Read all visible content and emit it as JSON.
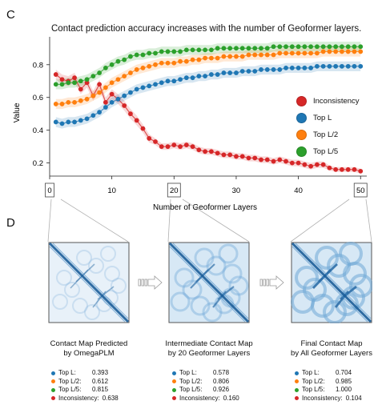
{
  "panel_c_letter": "C",
  "panel_d_letter": "D",
  "chart_data": {
    "type": "line",
    "title": "Contact prediction accuracy increases with the number of Geoformer layers.",
    "xlabel": "Number of Geoformer Layers",
    "ylabel": "Value",
    "xlim": [
      0,
      51
    ],
    "ylim": [
      0.12,
      0.97
    ],
    "xticks": [
      0,
      10,
      20,
      30,
      40,
      50
    ],
    "yticks": [
      0.2,
      0.4,
      0.6,
      0.8
    ],
    "highlighted_xticks": [
      0,
      20,
      50
    ],
    "legend_position": "right",
    "grid": false,
    "x": [
      1,
      2,
      3,
      4,
      5,
      6,
      7,
      8,
      9,
      10,
      11,
      12,
      13,
      14,
      15,
      16,
      17,
      18,
      19,
      20,
      21,
      22,
      23,
      24,
      25,
      26,
      27,
      28,
      29,
      30,
      31,
      32,
      33,
      34,
      35,
      36,
      37,
      38,
      39,
      40,
      41,
      42,
      43,
      44,
      45,
      46,
      47,
      48,
      49,
      50
    ],
    "series": [
      {
        "name": "Inconsistency",
        "color": "#d62728",
        "values": [
          0.74,
          0.71,
          0.7,
          0.72,
          0.65,
          0.69,
          0.61,
          0.68,
          0.57,
          0.62,
          0.59,
          0.55,
          0.5,
          0.46,
          0.41,
          0.35,
          0.33,
          0.3,
          0.3,
          0.31,
          0.3,
          0.31,
          0.3,
          0.28,
          0.27,
          0.27,
          0.26,
          0.25,
          0.25,
          0.24,
          0.24,
          0.23,
          0.23,
          0.22,
          0.22,
          0.21,
          0.22,
          0.21,
          0.2,
          0.2,
          0.19,
          0.18,
          0.19,
          0.19,
          0.17,
          0.16,
          0.16,
          0.16,
          0.16,
          0.15
        ],
        "band": [
          0.03,
          0.03,
          0.03,
          0.03,
          0.03,
          0.03,
          0.03,
          0.03,
          0.03,
          0.03,
          0.03,
          0.03,
          0.03,
          0.03,
          0.025,
          0.025,
          0.02,
          0.02,
          0.02,
          0.02,
          0.02,
          0.02,
          0.02,
          0.02,
          0.02,
          0.02,
          0.02,
          0.02,
          0.02,
          0.02,
          0.02,
          0.02,
          0.02,
          0.02,
          0.02,
          0.02,
          0.02,
          0.02,
          0.02,
          0.02,
          0.02,
          0.02,
          0.02,
          0.02,
          0.015,
          0.015,
          0.015,
          0.015,
          0.015,
          0.015
        ]
      },
      {
        "name": "Top L",
        "color": "#1f77b4",
        "values": [
          0.45,
          0.44,
          0.45,
          0.45,
          0.46,
          0.47,
          0.49,
          0.51,
          0.54,
          0.57,
          0.59,
          0.61,
          0.63,
          0.65,
          0.66,
          0.67,
          0.68,
          0.69,
          0.7,
          0.7,
          0.71,
          0.72,
          0.72,
          0.73,
          0.73,
          0.74,
          0.74,
          0.75,
          0.75,
          0.75,
          0.76,
          0.76,
          0.76,
          0.77,
          0.77,
          0.77,
          0.77,
          0.78,
          0.78,
          0.78,
          0.78,
          0.78,
          0.79,
          0.79,
          0.79,
          0.79,
          0.79,
          0.79,
          0.79,
          0.79
        ],
        "band": [
          0.03,
          0.03,
          0.03,
          0.03,
          0.03,
          0.03,
          0.03,
          0.03,
          0.03,
          0.03,
          0.03,
          0.03,
          0.03,
          0.03,
          0.03,
          0.03,
          0.03,
          0.03,
          0.03,
          0.03,
          0.03,
          0.03,
          0.03,
          0.03,
          0.03,
          0.03,
          0.03,
          0.03,
          0.03,
          0.03,
          0.03,
          0.03,
          0.03,
          0.03,
          0.03,
          0.03,
          0.03,
          0.03,
          0.03,
          0.03,
          0.03,
          0.03,
          0.03,
          0.03,
          0.03,
          0.03,
          0.03,
          0.03,
          0.03,
          0.03
        ]
      },
      {
        "name": "Top L/2",
        "color": "#ff7f0e",
        "values": [
          0.56,
          0.56,
          0.57,
          0.57,
          0.58,
          0.59,
          0.61,
          0.63,
          0.66,
          0.69,
          0.71,
          0.73,
          0.75,
          0.77,
          0.78,
          0.79,
          0.8,
          0.81,
          0.81,
          0.81,
          0.82,
          0.82,
          0.83,
          0.83,
          0.84,
          0.84,
          0.84,
          0.85,
          0.85,
          0.85,
          0.85,
          0.86,
          0.86,
          0.86,
          0.86,
          0.86,
          0.87,
          0.87,
          0.87,
          0.87,
          0.87,
          0.87,
          0.87,
          0.88,
          0.88,
          0.88,
          0.88,
          0.88,
          0.88,
          0.88
        ],
        "band": [
          0.03,
          0.03,
          0.03,
          0.03,
          0.03,
          0.03,
          0.03,
          0.03,
          0.03,
          0.03,
          0.03,
          0.03,
          0.03,
          0.03,
          0.03,
          0.03,
          0.03,
          0.03,
          0.03,
          0.03,
          0.03,
          0.03,
          0.03,
          0.03,
          0.03,
          0.03,
          0.03,
          0.03,
          0.03,
          0.03,
          0.03,
          0.03,
          0.03,
          0.03,
          0.03,
          0.03,
          0.03,
          0.03,
          0.03,
          0.03,
          0.03,
          0.03,
          0.03,
          0.03,
          0.03,
          0.03,
          0.03,
          0.03,
          0.03,
          0.03
        ]
      },
      {
        "name": "Top L/5",
        "color": "#2ca02c",
        "values": [
          0.68,
          0.68,
          0.69,
          0.69,
          0.7,
          0.71,
          0.73,
          0.75,
          0.78,
          0.8,
          0.82,
          0.83,
          0.85,
          0.86,
          0.86,
          0.87,
          0.87,
          0.88,
          0.88,
          0.88,
          0.88,
          0.89,
          0.89,
          0.89,
          0.89,
          0.89,
          0.9,
          0.9,
          0.9,
          0.9,
          0.9,
          0.9,
          0.9,
          0.9,
          0.9,
          0.91,
          0.91,
          0.91,
          0.91,
          0.91,
          0.91,
          0.91,
          0.91,
          0.91,
          0.91,
          0.91,
          0.91,
          0.91,
          0.91,
          0.91
        ],
        "band": [
          0.03,
          0.03,
          0.03,
          0.03,
          0.03,
          0.03,
          0.03,
          0.03,
          0.03,
          0.03,
          0.03,
          0.03,
          0.03,
          0.03,
          0.03,
          0.03,
          0.03,
          0.03,
          0.03,
          0.03,
          0.03,
          0.03,
          0.03,
          0.03,
          0.03,
          0.03,
          0.03,
          0.03,
          0.03,
          0.03,
          0.03,
          0.03,
          0.03,
          0.03,
          0.03,
          0.03,
          0.03,
          0.03,
          0.03,
          0.03,
          0.03,
          0.03,
          0.03,
          0.03,
          0.03,
          0.03,
          0.03,
          0.03,
          0.03,
          0.03
        ]
      }
    ]
  },
  "contact_maps": [
    {
      "caption_line1": "Contact Map Predicted",
      "caption_line2": "by OmegaPLM",
      "stats": [
        {
          "label": "Top L:",
          "value": "0.393",
          "color": "#1f77b4"
        },
        {
          "label": "Top L/2:",
          "value": "0.612",
          "color": "#ff7f0e"
        },
        {
          "label": "Top L/5:",
          "value": "0.815",
          "color": "#2ca02c"
        },
        {
          "label": "Inconsistency:",
          "value": "0.638",
          "color": "#d62728"
        }
      ]
    },
    {
      "caption_line1": "Intermediate Contact Map",
      "caption_line2": "by 20 Geoformer Layers",
      "stats": [
        {
          "label": "Top L:",
          "value": "0.578",
          "color": "#1f77b4"
        },
        {
          "label": "Top L/2:",
          "value": "0.806",
          "color": "#ff7f0e"
        },
        {
          "label": "Top L/5:",
          "value": "0.926",
          "color": "#2ca02c"
        },
        {
          "label": "Inconsistency:",
          "value": "0.160",
          "color": "#d62728"
        }
      ]
    },
    {
      "caption_line1": "Final Contact Map",
      "caption_line2": "by All Geoformer Layers",
      "stats": [
        {
          "label": "Top L:",
          "value": "0.704",
          "color": "#1f77b4"
        },
        {
          "label": "Top L/2:",
          "value": "0.985",
          "color": "#ff7f0e"
        },
        {
          "label": "Top L/5:",
          "value": "1.000",
          "color": "#2ca02c"
        },
        {
          "label": "Inconsistency:",
          "value": "0.104",
          "color": "#d62728"
        }
      ]
    }
  ],
  "icons": {
    "transition_arrow": "hollow-right-arrow-icon"
  }
}
